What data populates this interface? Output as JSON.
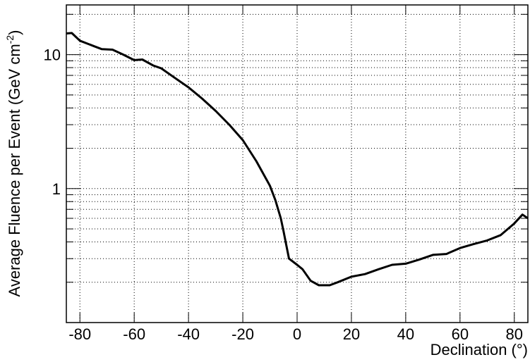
{
  "chart_data": {
    "type": "line",
    "xlabel": "Declination (°)",
    "ylabel": [
      "Average Fluence per Event (GeV cm",
      "-2",
      ")"
    ],
    "x": [
      -85,
      -83,
      -80,
      -75,
      -72,
      -68,
      -64,
      -60,
      -57,
      -53,
      -50,
      -45,
      -40,
      -35,
      -30,
      -25,
      -20,
      -15,
      -10,
      -8,
      -6,
      -5,
      -4,
      -3,
      0,
      2,
      5,
      8,
      12,
      15,
      20,
      25,
      30,
      35,
      40,
      45,
      50,
      55,
      60,
      65,
      70,
      75,
      80,
      83,
      85
    ],
    "series": [
      {
        "color": "#000000",
        "values": [
          14.4,
          14.5,
          12.7,
          11.6,
          11.0,
          10.9,
          10.0,
          9.1,
          9.2,
          8.3,
          7.9,
          6.7,
          5.7,
          4.7,
          3.8,
          3.0,
          2.3,
          1.6,
          1.05,
          0.82,
          0.6,
          0.48,
          0.38,
          0.3,
          0.27,
          0.25,
          0.205,
          0.19,
          0.19,
          0.2,
          0.22,
          0.23,
          0.25,
          0.27,
          0.275,
          0.295,
          0.32,
          0.325,
          0.36,
          0.385,
          0.41,
          0.45,
          0.55,
          0.64,
          0.6
        ]
      }
    ],
    "xlim": [
      -85,
      85
    ],
    "xticks": [
      -80,
      -60,
      -40,
      -20,
      0,
      20,
      40,
      60,
      80
    ],
    "ylim": [
      0.1,
      23.5
    ],
    "yticks": [
      1,
      10
    ],
    "yminor": [
      0.2,
      0.3,
      0.4,
      0.5,
      0.6,
      0.7,
      0.8,
      0.9,
      2,
      3,
      4,
      5,
      6,
      7,
      8,
      9,
      20
    ],
    "log_y": true,
    "grid": true
  }
}
